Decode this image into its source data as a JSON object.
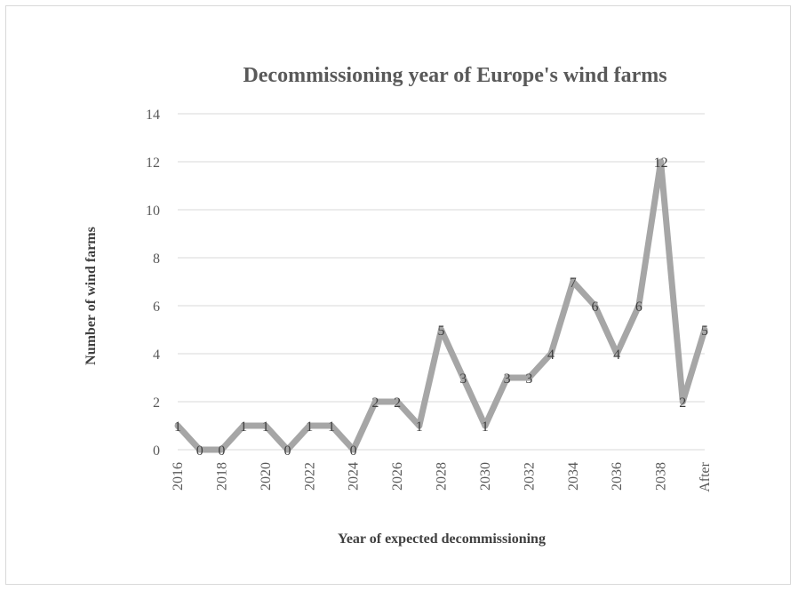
{
  "chart_data": {
    "type": "line",
    "title": "Decommissioning year of Europe's wind farms",
    "xlabel": "Year of expected decommissioning",
    "ylabel": "Number of wind farms",
    "ylim": [
      0,
      14
    ],
    "yticks": [
      0,
      2,
      4,
      6,
      8,
      10,
      12,
      14
    ],
    "grid": true,
    "categories": [
      "2016",
      "2017",
      "2018",
      "2019",
      "2020",
      "2021",
      "2022",
      "2023",
      "2024",
      "2025",
      "2026",
      "2027",
      "2028",
      "2029",
      "2030",
      "2031",
      "2032",
      "2033",
      "2034",
      "2035",
      "2036",
      "2037",
      "2038",
      "2039",
      "After"
    ],
    "x_tick_labels": [
      "2016",
      "",
      "2018",
      "",
      "2020",
      "",
      "2022",
      "",
      "2024",
      "",
      "2026",
      "",
      "2028",
      "",
      "2030",
      "",
      "2032",
      "",
      "2034",
      "",
      "2036",
      "",
      "2038",
      "",
      "After"
    ],
    "series": [
      {
        "values": [
          1,
          0,
          0,
          1,
          1,
          0,
          1,
          1,
          0,
          2,
          2,
          1,
          5,
          3,
          1,
          3,
          3,
          4,
          7,
          6,
          4,
          6,
          12,
          2,
          5
        ]
      }
    ],
    "line_color": "#a6a6a6"
  }
}
